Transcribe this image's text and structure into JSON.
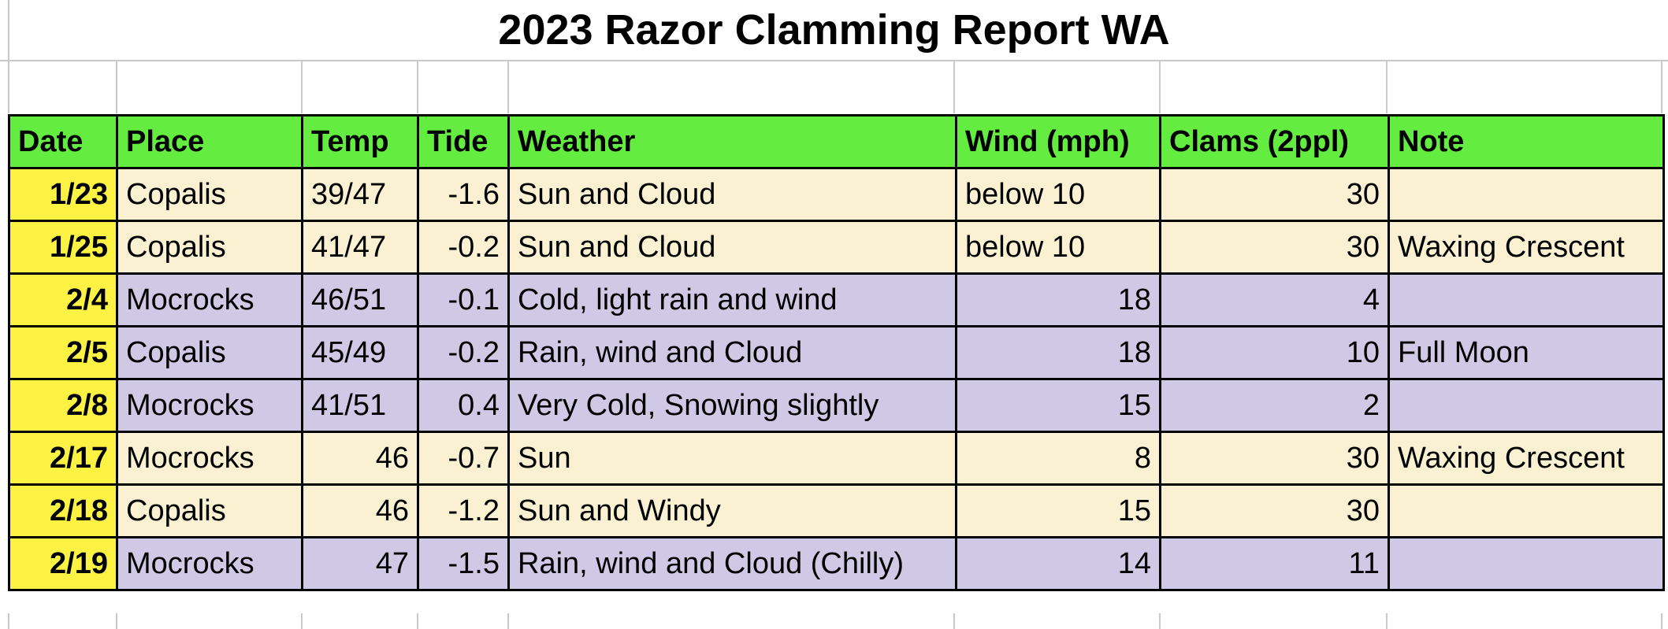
{
  "title": "2023 Razor Clamming Report WA",
  "colors": {
    "header_green": "#64ec41",
    "date_yellow": "#fbf244",
    "row_cream": "#faf0d2",
    "row_lavender": "#cfc9e6",
    "gridline_gray": "#c9c9c9",
    "border_black": "#000000"
  },
  "table": {
    "columns": [
      {
        "key": "date",
        "label": "Date"
      },
      {
        "key": "place",
        "label": "Place"
      },
      {
        "key": "temp",
        "label": "Temp"
      },
      {
        "key": "tide",
        "label": "Tide"
      },
      {
        "key": "weather",
        "label": "Weather"
      },
      {
        "key": "wind",
        "label": "Wind (mph)"
      },
      {
        "key": "clams",
        "label": "Clams (2ppl)"
      },
      {
        "key": "note",
        "label": "Note"
      }
    ],
    "rows": [
      {
        "date": "1/23",
        "place": "Copalis",
        "temp": "39/47",
        "tide": "-1.6",
        "weather": "Sun and Cloud",
        "wind": "below 10",
        "clams": "30",
        "note": "",
        "shade": "cream"
      },
      {
        "date": "1/25",
        "place": "Copalis",
        "temp": "41/47",
        "tide": "-0.2",
        "weather": "Sun and Cloud",
        "wind": "below 10",
        "clams": "30",
        "note": "Waxing Crescent",
        "shade": "cream"
      },
      {
        "date": "2/4",
        "place": "Mocrocks",
        "temp": "46/51",
        "tide": "-0.1",
        "weather": "Cold, light rain and wind",
        "wind": "18",
        "clams": "4",
        "note": "",
        "shade": "lavender"
      },
      {
        "date": "2/5",
        "place": "Copalis",
        "temp": "45/49",
        "tide": "-0.2",
        "weather": "Rain, wind and Cloud",
        "wind": "18",
        "clams": "10",
        "note": "Full Moon",
        "shade": "lavender"
      },
      {
        "date": "2/8",
        "place": "Mocrocks",
        "temp": "41/51",
        "tide": "0.4",
        "weather": "Very Cold, Snowing slightly",
        "wind": "15",
        "clams": "2",
        "note": "",
        "shade": "lavender"
      },
      {
        "date": "2/17",
        "place": "Mocrocks",
        "temp": "46",
        "tide": "-0.7",
        "weather": "Sun",
        "wind": "8",
        "clams": "30",
        "note": "Waxing Crescent",
        "shade": "cream"
      },
      {
        "date": "2/18",
        "place": "Copalis",
        "temp": "46",
        "tide": "-1.2",
        "weather": "Sun and Windy",
        "wind": "15",
        "clams": "30",
        "note": "",
        "shade": "cream"
      },
      {
        "date": "2/19",
        "place": "Mocrocks",
        "temp": "47",
        "tide": "-1.5",
        "weather": "Rain, wind and Cloud (Chilly)",
        "wind": "14",
        "clams": "11",
        "note": "",
        "shade": "lavender"
      }
    ]
  }
}
